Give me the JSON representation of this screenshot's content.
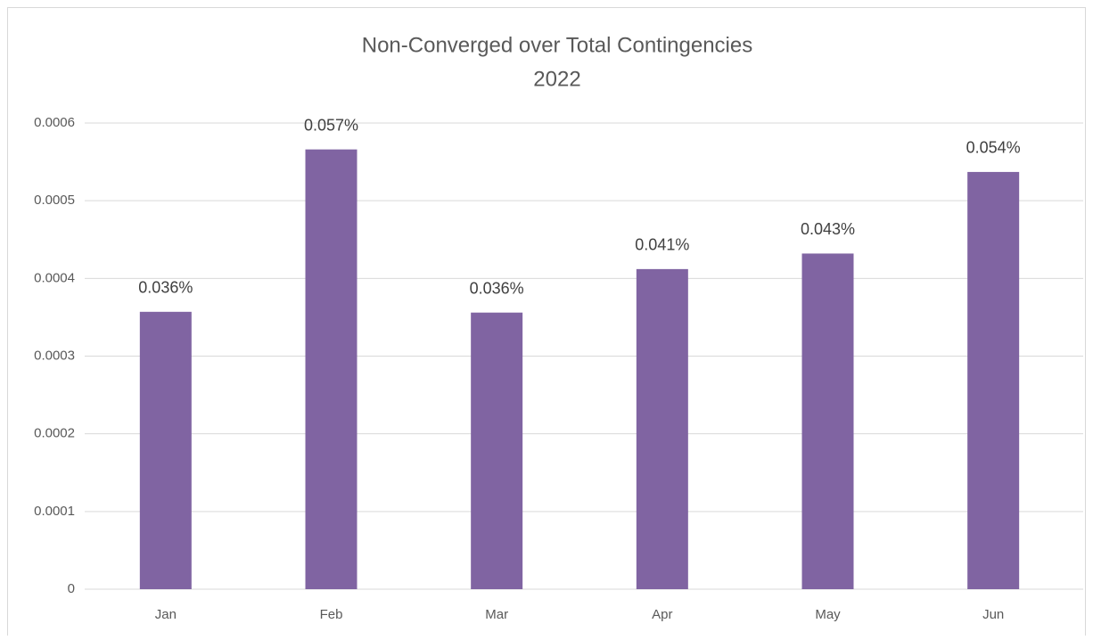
{
  "chart_data": {
    "type": "bar",
    "title": "Non-Converged over Total Contingencies",
    "subtitle": "2022",
    "categories": [
      "Jan",
      "Feb",
      "Mar",
      "Apr",
      "May",
      "Jun"
    ],
    "values": [
      0.000357,
      0.000566,
      0.000356,
      0.000412,
      0.000432,
      0.000537
    ],
    "value_labels": [
      "0.036%",
      "0.057%",
      "0.036%",
      "0.041%",
      "0.043%",
      "0.054%"
    ],
    "color": "#8064a2",
    "ylim": [
      0,
      0.0006
    ],
    "yticks": [
      0,
      0.0001,
      0.0002,
      0.0003,
      0.0004,
      0.0005,
      0.0006
    ],
    "grid": true
  }
}
